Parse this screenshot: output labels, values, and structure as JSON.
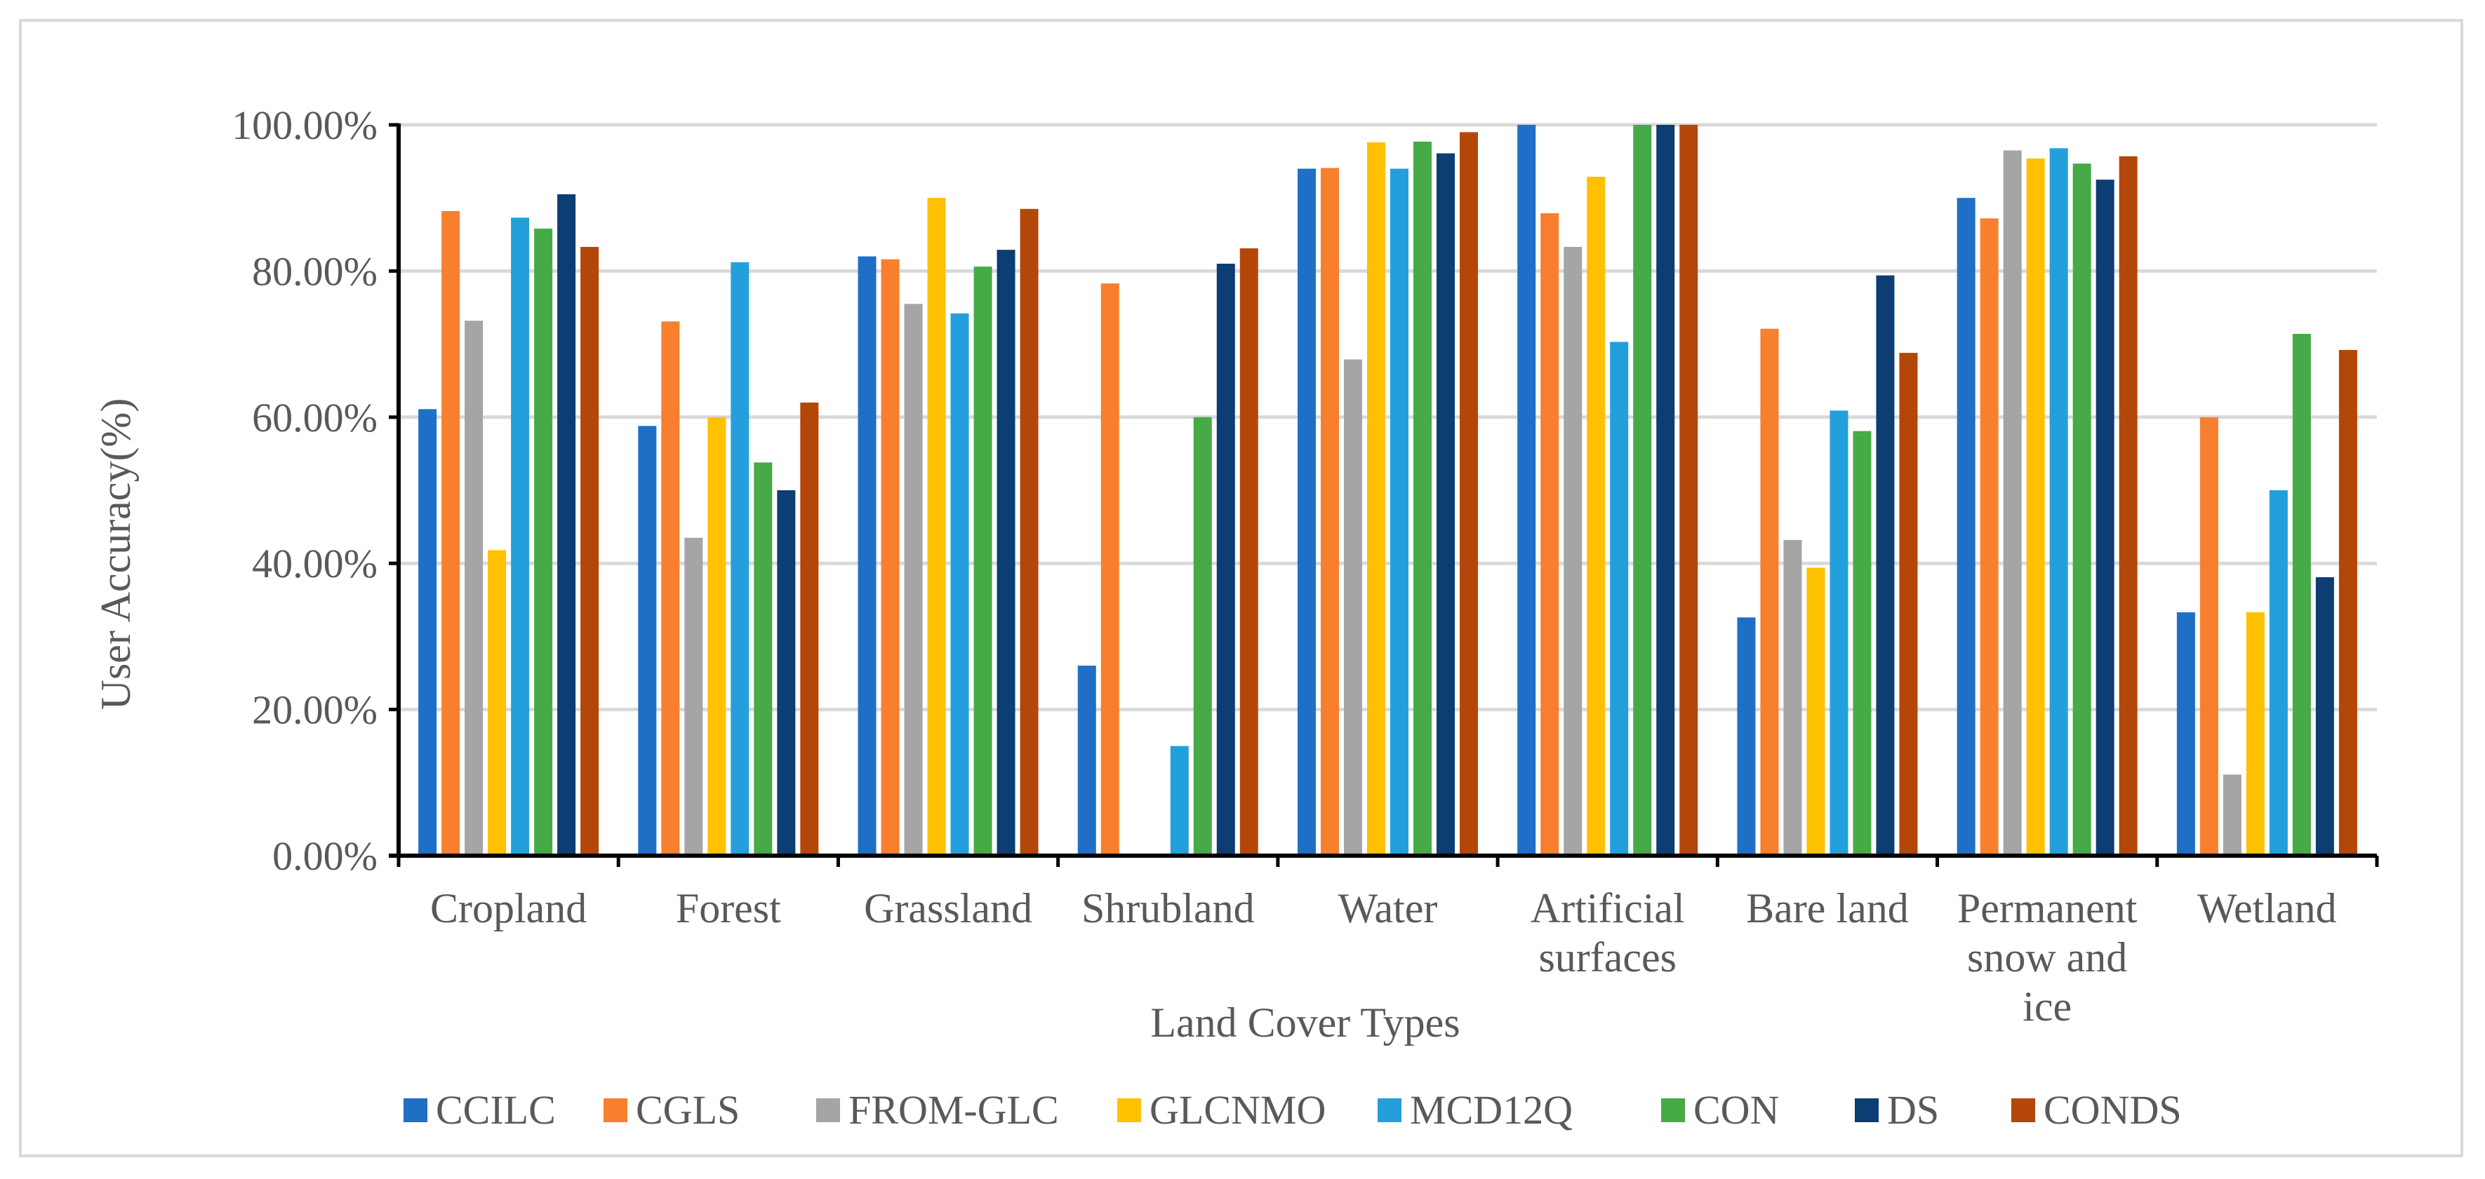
{
  "chart_data": {
    "type": "bar",
    "title": "",
    "xlabel": "Land Cover Types",
    "ylabel": "User Accuracy(%)",
    "ylim": [
      0,
      100
    ],
    "yticks": [
      "0.00%",
      "20.00%",
      "40.00%",
      "60.00%",
      "80.00%",
      "100.00%"
    ],
    "grid": true,
    "legend_position": "bottom",
    "categories": [
      "Cropland",
      "Forest",
      "Grassland",
      "Shrubland",
      "Water",
      "Artificial surfaces",
      "Bare land",
      "Permanent snow and ice",
      "Wetland"
    ],
    "category_lines": [
      [
        "Cropland"
      ],
      [
        "Forest"
      ],
      [
        "Grassland"
      ],
      [
        "Shrubland"
      ],
      [
        "Water"
      ],
      [
        "Artificial",
        "surfaces"
      ],
      [
        "Bare land"
      ],
      [
        "Permanent",
        "snow and",
        "ice"
      ],
      [
        "Wetland"
      ]
    ],
    "series": [
      {
        "name": "CCILC",
        "color": "#1f6fc6",
        "values": [
          61.1,
          58.8,
          82.0,
          26.0,
          94.0,
          100.0,
          32.6,
          90.0,
          33.3
        ]
      },
      {
        "name": "CGLS",
        "color": "#f87f2d",
        "values": [
          88.2,
          73.1,
          81.6,
          78.3,
          94.1,
          87.9,
          72.1,
          87.2,
          60.0
        ]
      },
      {
        "name": "FROM-GLC",
        "color": "#a5a5a5",
        "values": [
          73.2,
          43.5,
          75.5,
          0.0,
          67.9,
          83.3,
          43.2,
          96.5,
          11.1
        ]
      },
      {
        "name": "GLCNMO",
        "color": "#ffc000",
        "values": [
          41.8,
          60.0,
          90.0,
          0.0,
          97.6,
          92.9,
          39.4,
          95.4,
          33.3
        ]
      },
      {
        "name": "MCD12Q",
        "color": "#23a0dc",
        "values": [
          87.3,
          81.2,
          74.2,
          15.0,
          94.0,
          70.3,
          60.9,
          96.8,
          50.0
        ]
      },
      {
        "name": "CON",
        "color": "#46aa46",
        "values": [
          85.8,
          53.8,
          80.6,
          60.0,
          97.7,
          100.0,
          58.1,
          94.7,
          71.4
        ]
      },
      {
        "name": "DS",
        "color": "#0c3d73",
        "values": [
          90.5,
          50.0,
          82.9,
          81.0,
          96.1,
          100.0,
          79.4,
          92.5,
          38.1
        ]
      },
      {
        "name": "CONDS",
        "color": "#b5460a",
        "values": [
          83.3,
          62.0,
          88.5,
          83.1,
          99.0,
          100.0,
          68.8,
          95.7,
          69.2
        ]
      }
    ]
  }
}
